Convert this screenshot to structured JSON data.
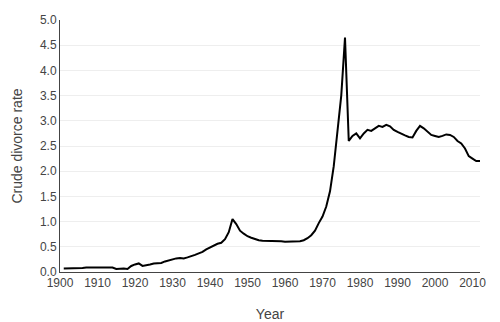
{
  "chart_data": {
    "type": "line",
    "xlabel": "Year",
    "ylabel": "Crude divorce rate",
    "x": [
      1901,
      1902,
      1903,
      1904,
      1905,
      1906,
      1907,
      1908,
      1909,
      1910,
      1911,
      1912,
      1913,
      1914,
      1915,
      1916,
      1917,
      1918,
      1919,
      1920,
      1921,
      1922,
      1923,
      1924,
      1925,
      1926,
      1927,
      1928,
      1929,
      1930,
      1931,
      1932,
      1933,
      1934,
      1935,
      1936,
      1937,
      1938,
      1939,
      1940,
      1941,
      1942,
      1943,
      1944,
      1945,
      1946,
      1947,
      1948,
      1949,
      1950,
      1951,
      1952,
      1953,
      1954,
      1955,
      1956,
      1957,
      1958,
      1959,
      1960,
      1961,
      1962,
      1963,
      1964,
      1965,
      1966,
      1967,
      1968,
      1969,
      1970,
      1971,
      1972,
      1973,
      1974,
      1975,
      1976,
      1977,
      1978,
      1979,
      1980,
      1981,
      1982,
      1983,
      1984,
      1985,
      1986,
      1987,
      1988,
      1989,
      1990,
      1991,
      1992,
      1993,
      1994,
      1995,
      1996,
      1997,
      1998,
      1999,
      2000,
      2001,
      2002,
      2003,
      2004,
      2005,
      2006,
      2007,
      2008,
      2009,
      2010,
      2011,
      2012
    ],
    "values": [
      0.07,
      0.07,
      0.07,
      0.08,
      0.08,
      0.08,
      0.09,
      0.09,
      0.09,
      0.09,
      0.09,
      0.1,
      0.1,
      0.09,
      0.06,
      0.07,
      0.07,
      0.06,
      0.12,
      0.15,
      0.17,
      0.12,
      0.13,
      0.15,
      0.17,
      0.17,
      0.18,
      0.21,
      0.23,
      0.26,
      0.27,
      0.28,
      0.27,
      0.29,
      0.31,
      0.34,
      0.37,
      0.4,
      0.45,
      0.49,
      0.52,
      0.56,
      0.58,
      0.65,
      0.79,
      1.05,
      0.95,
      0.82,
      0.76,
      0.71,
      0.68,
      0.65,
      0.63,
      0.62,
      0.62,
      0.62,
      0.62,
      0.62,
      0.61,
      0.6,
      0.6,
      0.6,
      0.6,
      0.61,
      0.63,
      0.67,
      0.73,
      0.82,
      0.97,
      1.1,
      1.3,
      1.6,
      2.1,
      2.8,
      3.5,
      4.65,
      2.6,
      2.7,
      2.75,
      2.65,
      2.75,
      2.82,
      2.8,
      2.85,
      2.9,
      2.88,
      2.92,
      2.89,
      2.82,
      2.78,
      2.74,
      2.71,
      2.68,
      2.67,
      2.8,
      2.9,
      2.85,
      2.78,
      2.72,
      2.7,
      2.68,
      2.7,
      2.73,
      2.72,
      2.68,
      2.6,
      2.55,
      2.45,
      2.3,
      2.25,
      2.2,
      2.2
    ],
    "color": "#000000",
    "xlim": [
      1900,
      2012
    ],
    "xticks": [
      1900,
      1910,
      1920,
      1930,
      1940,
      1950,
      1960,
      1970,
      1980,
      1990,
      2000,
      2010
    ],
    "ylim": [
      0,
      5.0
    ],
    "yticks": [
      {
        "value": 0,
        "label": "0.0"
      },
      0.5,
      {
        "value": 1,
        "label": "1.0"
      },
      1.5,
      {
        "value": 2,
        "label": "2.0"
      },
      2.5,
      {
        "value": 3,
        "label": "3.0"
      },
      3.5,
      {
        "value": 4,
        "label": "4.0"
      },
      4.5,
      {
        "value": 5,
        "label": "5.0"
      }
    ],
    "grid": "y"
  }
}
